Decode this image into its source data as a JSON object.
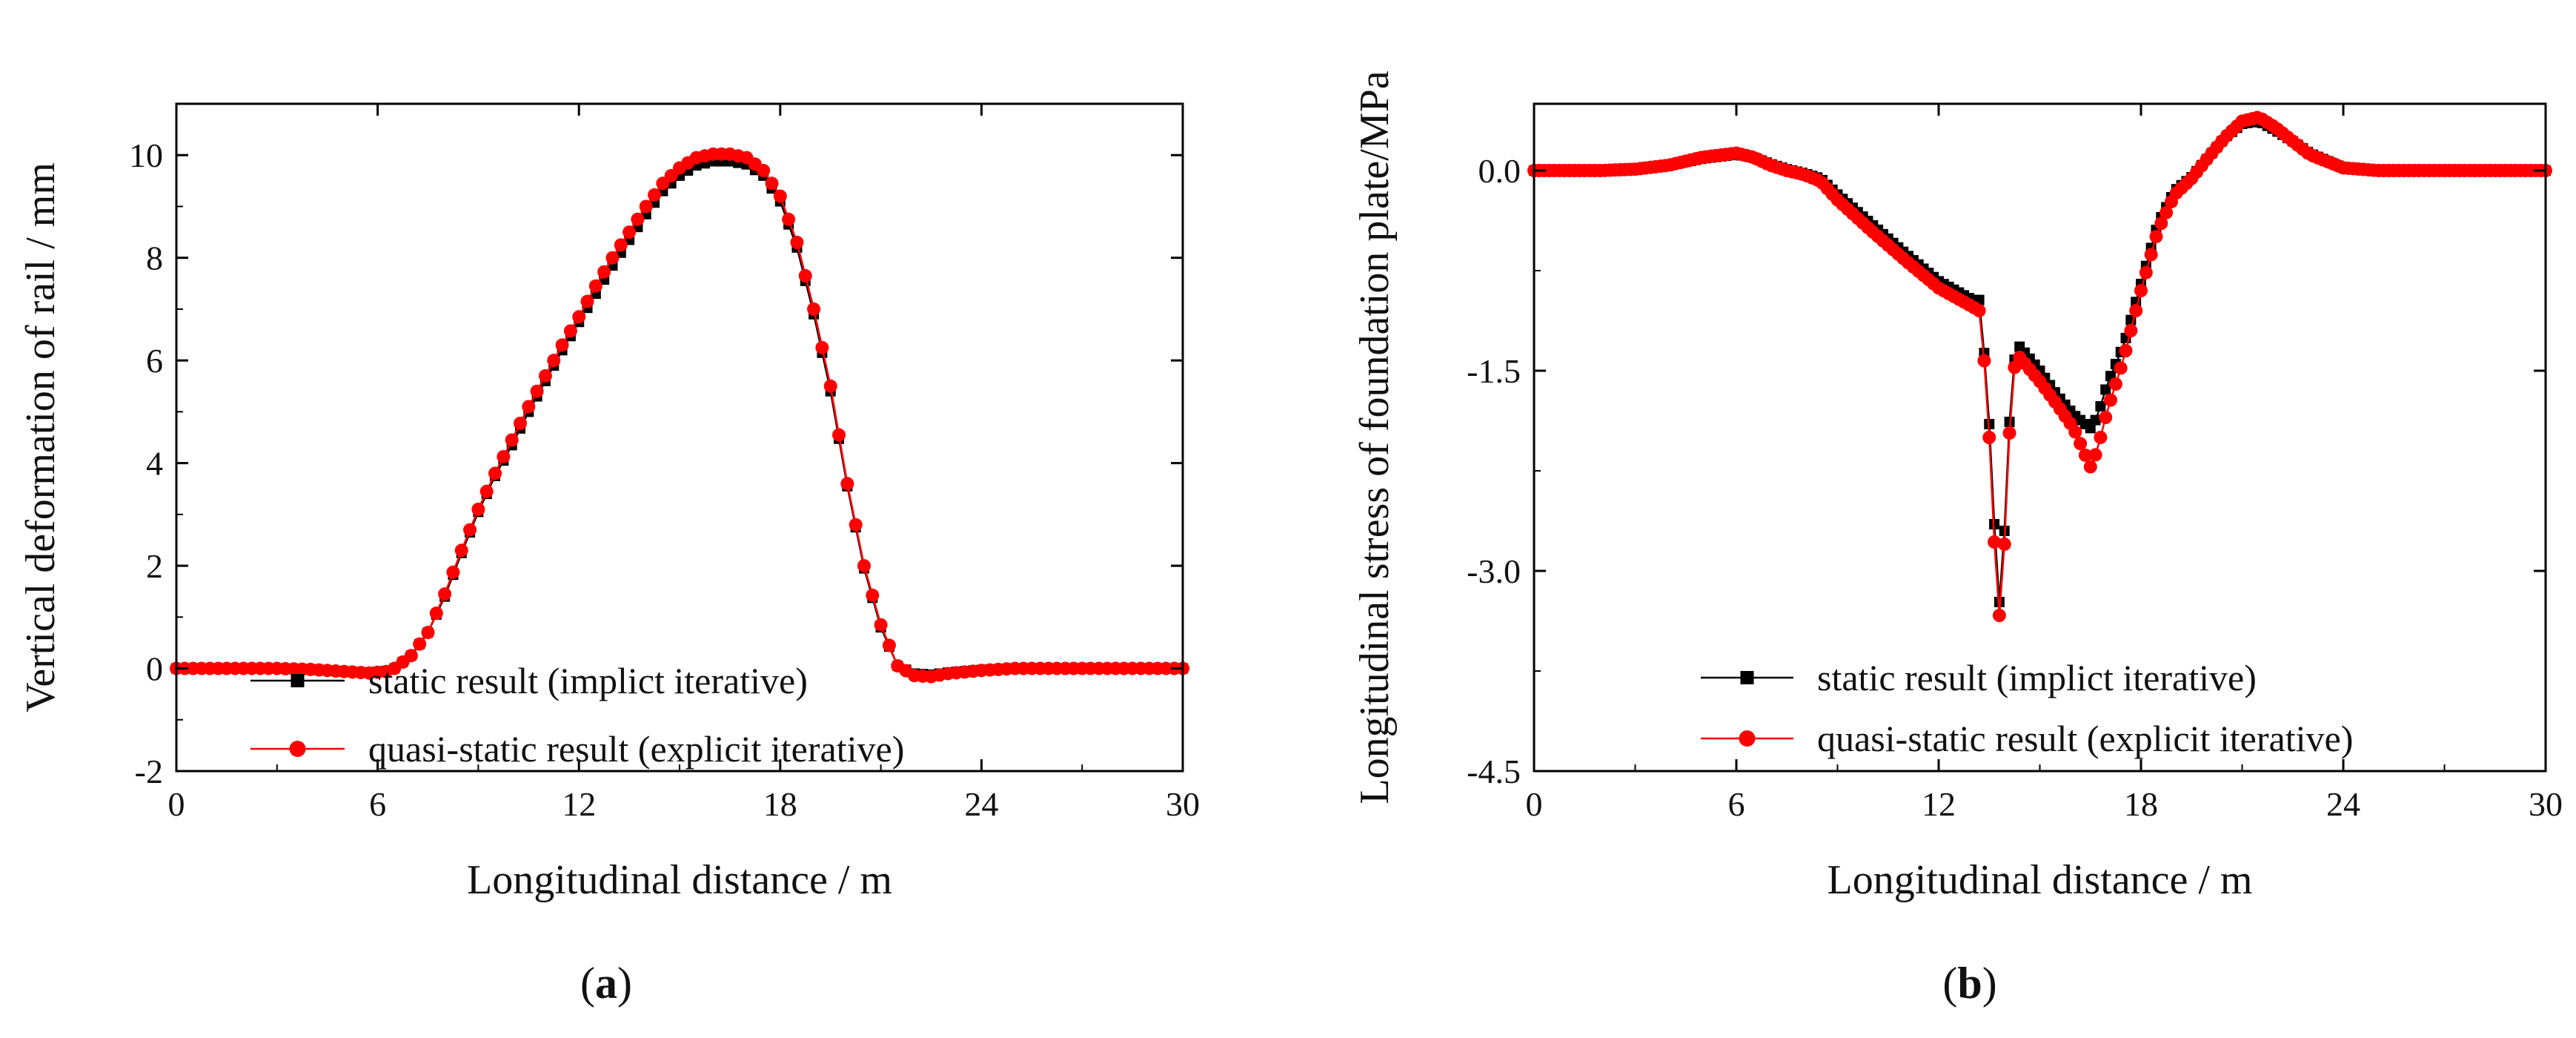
{
  "chart_data": [
    {
      "type": "line",
      "panel_label_open": "(",
      "panel_label_letter": "a",
      "panel_label_close": ")",
      "xlabel": "Longitudinal distance / m",
      "ylabel": "Vertical deformation of rail / mm",
      "xlim": [
        0,
        30
      ],
      "ylim": [
        -2,
        11
      ],
      "xticks": [
        0,
        6,
        12,
        18,
        24,
        30
      ],
      "xtick_labels": [
        "0",
        "6",
        "12",
        "18",
        "24",
        "30"
      ],
      "yticks": [
        -2,
        0,
        2,
        4,
        6,
        8,
        10
      ],
      "ytick_labels": [
        "-2",
        "0",
        "2",
        "4",
        "6",
        "8",
        "10"
      ],
      "legend_position": "bottom-left",
      "x_step": 0.25,
      "series": [
        {
          "name": "static result (implict  iterative)",
          "color": "#000000",
          "marker": "square",
          "knots": [
            [
              0,
              0
            ],
            [
              3,
              0
            ],
            [
              4,
              -0.02
            ],
            [
              5,
              -0.06
            ],
            [
              5.75,
              -0.08
            ],
            [
              6.25,
              -0.05
            ],
            [
              6.5,
              0
            ],
            [
              7,
              0.25
            ],
            [
              7.5,
              0.7
            ],
            [
              8,
              1.4
            ],
            [
              8.5,
              2.25
            ],
            [
              9,
              3.05
            ],
            [
              9.5,
              3.75
            ],
            [
              10,
              4.35
            ],
            [
              10.5,
              5.0
            ],
            [
              11,
              5.6
            ],
            [
              11.5,
              6.2
            ],
            [
              12,
              6.75
            ],
            [
              12.5,
              7.3
            ],
            [
              13,
              7.85
            ],
            [
              13.5,
              8.35
            ],
            [
              14,
              8.85
            ],
            [
              14.5,
              9.3
            ],
            [
              15,
              9.6
            ],
            [
              15.5,
              9.8
            ],
            [
              16,
              9.88
            ],
            [
              16.5,
              9.88
            ],
            [
              17,
              9.82
            ],
            [
              17.5,
              9.6
            ],
            [
              18,
              9.1
            ],
            [
              18.5,
              8.2
            ],
            [
              19,
              6.9
            ],
            [
              19.5,
              5.4
            ],
            [
              20,
              3.55
            ],
            [
              20.5,
              1.95
            ],
            [
              21,
              0.8
            ],
            [
              21.5,
              0.05
            ],
            [
              22,
              -0.1
            ],
            [
              22.5,
              -0.12
            ],
            [
              23,
              -0.08
            ],
            [
              24,
              -0.03
            ],
            [
              25,
              0
            ],
            [
              30,
              0
            ]
          ]
        },
        {
          "name": "quasi-static result (explicit iterative)",
          "color": "#ff0000",
          "marker": "circle",
          "knots": [
            [
              0,
              0
            ],
            [
              3,
              0
            ],
            [
              4,
              -0.02
            ],
            [
              5,
              -0.06
            ],
            [
              5.75,
              -0.09
            ],
            [
              6.25,
              -0.06
            ],
            [
              6.5,
              0
            ],
            [
              7,
              0.25
            ],
            [
              7.5,
              0.7
            ],
            [
              8,
              1.45
            ],
            [
              8.5,
              2.3
            ],
            [
              9,
              3.1
            ],
            [
              9.5,
              3.8
            ],
            [
              10,
              4.45
            ],
            [
              10.5,
              5.1
            ],
            [
              11,
              5.7
            ],
            [
              11.5,
              6.3
            ],
            [
              12,
              6.85
            ],
            [
              12.5,
              7.45
            ],
            [
              13,
              8.0
            ],
            [
              13.5,
              8.5
            ],
            [
              14,
              9.0
            ],
            [
              14.5,
              9.45
            ],
            [
              15,
              9.75
            ],
            [
              15.5,
              9.95
            ],
            [
              16,
              10.02
            ],
            [
              16.5,
              10.02
            ],
            [
              17,
              9.95
            ],
            [
              17.5,
              9.7
            ],
            [
              18,
              9.2
            ],
            [
              18.5,
              8.3
            ],
            [
              19,
              7.0
            ],
            [
              19.5,
              5.5
            ],
            [
              20,
              3.6
            ],
            [
              20.5,
              2.0
            ],
            [
              21,
              0.85
            ],
            [
              21.5,
              0.05
            ],
            [
              22,
              -0.14
            ],
            [
              22.5,
              -0.16
            ],
            [
              23,
              -0.1
            ],
            [
              24,
              -0.04
            ],
            [
              25,
              0
            ],
            [
              30,
              0
            ]
          ]
        }
      ]
    },
    {
      "type": "line",
      "panel_label_open": "(",
      "panel_label_letter": "b",
      "panel_label_close": ")",
      "xlabel": "Longitudinal distance / m",
      "ylabel": "Longitudinal stress of foundation plate/MPa",
      "xlim": [
        0,
        30
      ],
      "ylim": [
        -4.5,
        0.5
      ],
      "xticks": [
        0,
        6,
        12,
        18,
        24,
        30
      ],
      "xtick_labels": [
        "0",
        "6",
        "12",
        "18",
        "24",
        "30"
      ],
      "yticks": [
        -4.5,
        -3.0,
        -1.5,
        0.0
      ],
      "ytick_labels": [
        "-4.5",
        "-3.0",
        "-1.5",
        "0.0"
      ],
      "legend_position": "bottom-right",
      "x_step": 0.15,
      "series": [
        {
          "name": "static result (implict  iterative)",
          "color": "#000000",
          "marker": "square",
          "knots": [
            [
              0,
              0
            ],
            [
              2,
              0
            ],
            [
              3,
              0.01
            ],
            [
              4,
              0.04
            ],
            [
              5,
              0.09
            ],
            [
              6,
              0.12
            ],
            [
              6.5,
              0.1
            ],
            [
              7,
              0.05
            ],
            [
              7.5,
              0.01
            ],
            [
              8,
              -0.02
            ],
            [
              8.5,
              -0.06
            ],
            [
              9,
              -0.18
            ],
            [
              10,
              -0.4
            ],
            [
              11,
              -0.62
            ],
            [
              12,
              -0.83
            ],
            [
              13,
              -0.97
            ],
            [
              13.2,
              -0.97
            ],
            [
              13.4,
              -1.5
            ],
            [
              13.6,
              -2.3
            ],
            [
              13.75,
              -3.35
            ],
            [
              13.9,
              -3.0
            ],
            [
              14.05,
              -2.1
            ],
            [
              14.2,
              -1.45
            ],
            [
              14.4,
              -1.32
            ],
            [
              15,
              -1.5
            ],
            [
              15.5,
              -1.68
            ],
            [
              16,
              -1.83
            ],
            [
              16.5,
              -1.93
            ],
            [
              16.7,
              -1.85
            ],
            [
              17,
              -1.6
            ],
            [
              17.5,
              -1.3
            ],
            [
              18,
              -0.85
            ],
            [
              18.5,
              -0.4
            ],
            [
              19,
              -0.15
            ],
            [
              19.5,
              -0.05
            ],
            [
              20,
              0.1
            ],
            [
              20.5,
              0.25
            ],
            [
              21,
              0.35
            ],
            [
              21.5,
              0.37
            ],
            [
              22,
              0.3
            ],
            [
              22.5,
              0.22
            ],
            [
              23,
              0.13
            ],
            [
              24,
              0.02
            ],
            [
              25,
              0
            ],
            [
              30,
              0
            ]
          ]
        },
        {
          "name": "quasi-static result (explicit iterative)",
          "color": "#ff0000",
          "marker": "circle",
          "knots": [
            [
              0,
              0
            ],
            [
              2,
              0
            ],
            [
              3,
              0.01
            ],
            [
              4,
              0.04
            ],
            [
              5,
              0.1
            ],
            [
              6,
              0.13
            ],
            [
              6.5,
              0.1
            ],
            [
              7,
              0.04
            ],
            [
              7.5,
              0
            ],
            [
              8,
              -0.03
            ],
            [
              8.5,
              -0.08
            ],
            [
              9,
              -0.22
            ],
            [
              10,
              -0.45
            ],
            [
              11,
              -0.67
            ],
            [
              12,
              -0.88
            ],
            [
              13,
              -1.02
            ],
            [
              13.2,
              -1.05
            ],
            [
              13.4,
              -1.55
            ],
            [
              13.6,
              -2.45
            ],
            [
              13.75,
              -3.45
            ],
            [
              13.9,
              -3.1
            ],
            [
              14.05,
              -2.2
            ],
            [
              14.2,
              -1.5
            ],
            [
              14.4,
              -1.4
            ],
            [
              15,
              -1.58
            ],
            [
              15.5,
              -1.75
            ],
            [
              16,
              -1.93
            ],
            [
              16.5,
              -2.22
            ],
            [
              16.7,
              -2.1
            ],
            [
              17,
              -1.8
            ],
            [
              17.5,
              -1.4
            ],
            [
              18,
              -0.9
            ],
            [
              18.5,
              -0.45
            ],
            [
              19,
              -0.18
            ],
            [
              19.5,
              -0.06
            ],
            [
              20,
              0.1
            ],
            [
              20.5,
              0.25
            ],
            [
              21,
              0.37
            ],
            [
              21.5,
              0.4
            ],
            [
              22,
              0.32
            ],
            [
              22.5,
              0.22
            ],
            [
              23,
              0.12
            ],
            [
              24,
              0.02
            ],
            [
              25,
              0
            ],
            [
              30,
              0
            ]
          ]
        }
      ]
    }
  ]
}
